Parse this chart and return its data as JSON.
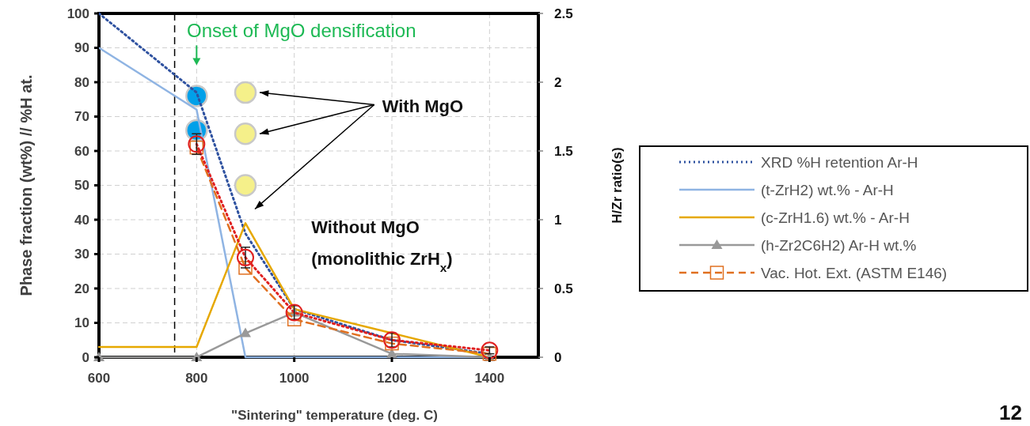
{
  "chart_data": {
    "type": "line",
    "xlabel": "\"Sintering\" temperature (deg. C)",
    "ylabel": "Phase fraction (wt%) // %H at.",
    "y2label": "H/Zr ratio(s)",
    "xlim": [
      600,
      1500
    ],
    "xticks": [
      600,
      800,
      1000,
      1200,
      1400
    ],
    "ylim": [
      0,
      100
    ],
    "yticks": [
      0,
      10,
      20,
      30,
      40,
      50,
      60,
      70,
      80,
      90,
      100
    ],
    "y2lim": [
      0,
      2.5
    ],
    "y2ticks": [
      0,
      0.5,
      1,
      1.5,
      2,
      2.5
    ],
    "grid": true,
    "legend": "right",
    "ref_lines": [
      {
        "axis": "x",
        "value": 755,
        "color": "#000000",
        "line_style": "dashed"
      }
    ],
    "series": [
      {
        "name": "XRD %H retention Ar-H",
        "color": "#2f52a0",
        "line_style": "dotted",
        "marker": "none",
        "x": [
          600,
          800,
          900,
          1000,
          1200,
          1400
        ],
        "values": [
          100,
          77,
          36,
          14,
          5,
          1
        ]
      },
      {
        "name": "(t-ZrH2) wt.% - Ar-H",
        "color": "#8fb4e3",
        "line_style": "solid",
        "marker": "none",
        "x": [
          600,
          800,
          900,
          1000,
          1200,
          1400
        ],
        "values": [
          90,
          72,
          0,
          0,
          0,
          0
        ]
      },
      {
        "name": "(c-ZrH1.6) wt.% - Ar-H",
        "color": "#e6a800",
        "line_style": "solid",
        "marker": "none",
        "x": [
          600,
          800,
          900,
          1000,
          1200,
          1400
        ],
        "values": [
          3,
          3,
          39,
          14,
          7,
          0
        ]
      },
      {
        "name": "(h-Zr2C6H2) Ar-H wt.%",
        "color": "#999999",
        "line_style": "solid",
        "marker": "triangle",
        "x": [
          600,
          800,
          900,
          1000,
          1200,
          1400
        ],
        "values": [
          0,
          0,
          7,
          13,
          1,
          0
        ]
      },
      {
        "name": "Vac. Hot. Ext. (ASTM E146)",
        "color": "#e07020",
        "line_style": "dashed",
        "marker": "square",
        "x": [
          800,
          900,
          1000,
          1200,
          1400
        ],
        "values": [
          61,
          26,
          11,
          4,
          1
        ]
      },
      {
        "color": "#e02020",
        "line_style": "dotted",
        "marker": "circle",
        "x": [
          800,
          900,
          1000,
          1200,
          1400
        ],
        "values": [
          62,
          29,
          13,
          5,
          2
        ],
        "errors": [
          3,
          3,
          2,
          2,
          1
        ]
      },
      {
        "type": "scatter",
        "color": "#00a0e9",
        "marker": "circle",
        "x": [
          800,
          800
        ],
        "values": [
          76,
          66
        ]
      },
      {
        "type": "scatter",
        "color": "#f5f08a",
        "marker": "circle",
        "x": [
          900,
          900,
          900
        ],
        "values": [
          77,
          65,
          50
        ]
      }
    ],
    "annotations": [
      "Onset of MgO densification",
      "With MgO",
      "Without MgO",
      "(monolithic ZrH$_{x}$)",
      "12"
    ]
  }
}
